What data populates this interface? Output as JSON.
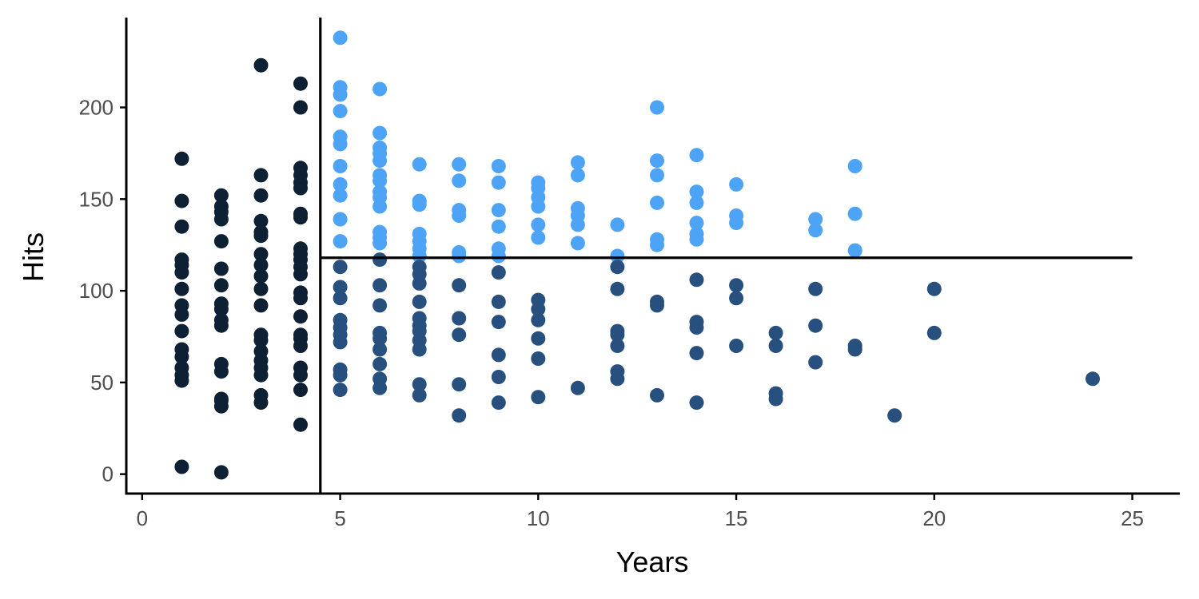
{
  "chart_data": {
    "type": "scatter",
    "title": "",
    "xlabel": "Years",
    "ylabel": "Hits",
    "xlim": [
      -0.4,
      26.2
    ],
    "ylim": [
      -10.6,
      249
    ],
    "x_ticks": [
      0,
      5,
      10,
      15,
      20,
      25
    ],
    "y_ticks": [
      0,
      50,
      100,
      150,
      200
    ],
    "x_tick_labels": [
      "0",
      "5",
      "10",
      "15",
      "20",
      "25"
    ],
    "y_tick_labels": [
      "0",
      "50",
      "100",
      "150",
      "200"
    ],
    "grid": false,
    "legend": "none",
    "reference_lines": {
      "vertical": {
        "x": 4.5,
        "y_range": [
          -10.6,
          249
        ]
      },
      "horizontal": {
        "y": 118,
        "x_range": [
          4.5,
          25
        ]
      }
    },
    "colors": {
      "region_years_lt_4_5": "#0e2033",
      "region_years_ge_4_5_hits_lt_118": "#27507f",
      "region_years_ge_4_5_hits_ge_118": "#4da3f5",
      "axis": "#000000",
      "tick_label": "#4d4d4d"
    },
    "points": [
      {
        "x": 1,
        "y": [
          172,
          149,
          135,
          117,
          114,
          110,
          101,
          92,
          87,
          78,
          68,
          64,
          58,
          54,
          51,
          4
        ]
      },
      {
        "x": 2,
        "y": [
          152,
          146,
          143,
          139,
          127,
          112,
          103,
          93,
          90,
          84,
          81,
          60,
          56,
          41,
          40,
          37,
          1
        ]
      },
      {
        "x": 3,
        "y": [
          223,
          163,
          152,
          138,
          132,
          130,
          120,
          114,
          108,
          101,
          92,
          76,
          73,
          67,
          62,
          58,
          54,
          43,
          39
        ]
      },
      {
        "x": 4,
        "y": [
          213,
          200,
          167,
          163,
          159,
          156,
          142,
          140,
          123,
          120,
          117,
          113,
          109,
          99,
          96,
          86,
          76,
          74,
          70,
          58,
          54,
          46,
          27
        ]
      },
      {
        "x": 5,
        "y": [
          238,
          211,
          207,
          198,
          184,
          180,
          168,
          158,
          152,
          139,
          127,
          113,
          102,
          96,
          84,
          80,
          76,
          72,
          57,
          54,
          46
        ]
      },
      {
        "x": 6,
        "y": [
          210,
          186,
          178,
          175,
          171,
          163,
          160,
          154,
          151,
          146,
          132,
          129,
          126,
          117,
          103,
          92,
          77,
          74,
          68,
          60,
          52,
          47
        ]
      },
      {
        "x": 7,
        "y": [
          169,
          149,
          147,
          131,
          127,
          123,
          119,
          113,
          109,
          104,
          94,
          85,
          81,
          78,
          73,
          68,
          49,
          43
        ]
      },
      {
        "x": 8,
        "y": [
          169,
          160,
          144,
          141,
          121,
          119,
          103,
          85,
          76,
          49,
          32
        ]
      },
      {
        "x": 9,
        "y": [
          168,
          159,
          144,
          135,
          123,
          119,
          110,
          94,
          83,
          65,
          53,
          39
        ]
      },
      {
        "x": 10,
        "y": [
          159,
          156,
          151,
          146,
          136,
          129,
          95,
          90,
          84,
          74,
          63,
          42
        ]
      },
      {
        "x": 11,
        "y": [
          170,
          163,
          145,
          141,
          136,
          126,
          47
        ]
      },
      {
        "x": 12,
        "y": [
          136,
          119,
          113,
          101,
          78,
          76,
          70,
          56,
          52
        ]
      },
      {
        "x": 13,
        "y": [
          200,
          171,
          163,
          148,
          128,
          125,
          94,
          92,
          43
        ]
      },
      {
        "x": 14,
        "y": [
          174,
          154,
          148,
          137,
          131,
          128,
          106,
          83,
          80,
          66,
          39
        ]
      },
      {
        "x": 15,
        "y": [
          158,
          141,
          137,
          103,
          96,
          70
        ]
      },
      {
        "x": 16,
        "y": [
          77,
          70,
          44,
          41
        ]
      },
      {
        "x": 17,
        "y": [
          139,
          133,
          101,
          81,
          61
        ]
      },
      {
        "x": 18,
        "y": [
          168,
          142,
          122,
          70,
          68
        ]
      },
      {
        "x": 19,
        "y": [
          32
        ]
      },
      {
        "x": 20,
        "y": [
          101,
          77
        ]
      },
      {
        "x": 24,
        "y": [
          52
        ]
      }
    ]
  }
}
